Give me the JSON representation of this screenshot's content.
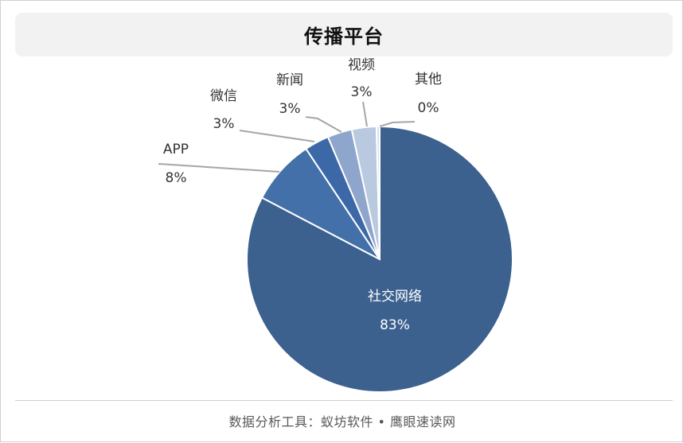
{
  "title": "传播平台",
  "footer": "数据分析工具：蚁坊软件 • 鹰眼速读网",
  "chart_data": {
    "type": "pie",
    "title": "传播平台",
    "slices": [
      {
        "name": "社交网络",
        "value": 83,
        "label": "83%",
        "color": "#3c618f"
      },
      {
        "name": "APP",
        "value": 8,
        "label": "8%",
        "color": "#4470aa"
      },
      {
        "name": "微信",
        "value": 3,
        "label": "3%",
        "color": "#3d68a8"
      },
      {
        "name": "新闻",
        "value": 3,
        "label": "3%",
        "color": "#8ea6cc"
      },
      {
        "name": "视频",
        "value": 3,
        "label": "3%",
        "color": "#b9c9e0"
      },
      {
        "name": "其他",
        "value": 0,
        "label": "0%",
        "color": "#d6e0ee"
      }
    ],
    "legend": "none"
  }
}
